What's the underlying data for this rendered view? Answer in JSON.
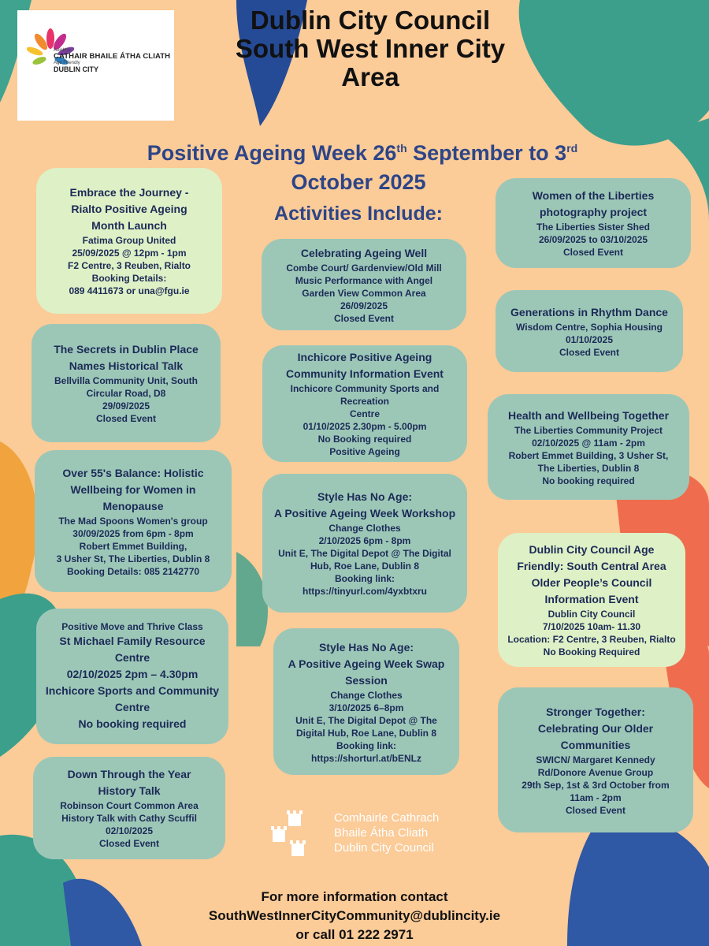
{
  "logo": {
    "small_top": "Aoisbhá",
    "line1": "CATHAIR BHAILE ÁTHA CLIATH",
    "small_mid": "Age Friendly",
    "line2": "DUBLIN CITY"
  },
  "header": {
    "title_line1": "Dublin City Council",
    "title_line2": "South West Inner City",
    "title_line3": "Area",
    "subtitle_a": "Positive Ageing Week 26",
    "subtitle_sup1": "th",
    "subtitle_b": " September to 3",
    "subtitle_sup2": "rd",
    "subtitle_line2": "October 2025",
    "subtitle_line3": "Activities Include:"
  },
  "events": {
    "embrace": {
      "title": [
        "Embrace the Journey -",
        "Rialto Positive Ageing",
        "Month Launch"
      ],
      "lines": [
        "Fatima Group United",
        "25/09/2025 @ 12pm - 1pm",
        "F2 Centre, 3 Reuben, Rialto",
        "Booking Details:",
        "089 4411673 or una@fgu.ie"
      ]
    },
    "secrets": {
      "title": [
        "The Secrets in Dublin Place",
        "Names Historical Talk"
      ],
      "lines": [
        "Bellvilla Community Unit, South",
        "Circular Road, D8",
        "29/09/2025",
        "Closed Event"
      ]
    },
    "over55": {
      "title": [
        "Over 55's Balance: Holistic",
        "Wellbeing for Women in",
        "Menopause"
      ],
      "lines": [
        "The Mad Spoons Women's group",
        "30/09/2025 from 6pm - 8pm",
        "Robert Emmet Building,",
        "3 Usher St, The Liberties, Dublin 8",
        "Booking Details: 085 2142770"
      ]
    },
    "move": {
      "lines": [
        "Positive Move and Thrive Class"
      ],
      "title": [
        "St Michael Family Resource",
        "Centre",
        "02/10/2025 2pm – 4.30pm",
        "Inchicore Sports and Community",
        "Centre",
        "No booking required"
      ]
    },
    "down": {
      "title": [
        "Down Through the Year",
        "History Talk"
      ],
      "lines": [
        "Robinson Court Common Area",
        "History Talk with Cathy Scuffil",
        "02/10/2025",
        "Closed Event"
      ]
    },
    "celebrating": {
      "title": [
        "Celebrating Ageing Well"
      ],
      "lines": [
        "Combe Court/ Gardenview/Old Mill",
        "Music Performance with Angel",
        "Garden View Common Area",
        "26/09/2025",
        "Closed Event"
      ]
    },
    "inchicore": {
      "title": [
        "Inchicore Positive Ageing",
        "Community Information Event"
      ],
      "lines": [
        "Inchicore Community Sports and Recreation",
        "Centre",
        "01/10/2025 2.30pm - 5.00pm",
        "No Booking required",
        "Positive Ageing"
      ]
    },
    "style1": {
      "title": [
        "Style Has No Age:",
        "A Positive Ageing Week Workshop"
      ],
      "lines": [
        "Change Clothes",
        "2/10/2025 6pm - 8pm",
        "Unit E, The Digital Depot @ The Digital",
        "Hub, Roe Lane, Dublin 8",
        "Booking link:",
        "https://tinyurl.com/4yxbtxru"
      ]
    },
    "style2": {
      "title": [
        "Style Has No Age:",
        "A Positive Ageing Week Swap",
        "Session"
      ],
      "lines": [
        "Change Clothes",
        "3/10/2025 6–8pm",
        "Unit E, The Digital Depot @ The",
        "Digital Hub, Roe Lane, Dublin 8",
        "Booking link:",
        "https://shorturl.at/bENLz"
      ]
    },
    "women": {
      "title": [
        "Women of the Liberties",
        "photography project"
      ],
      "lines": [
        "The Liberties Sister Shed",
        "26/09/2025 to 03/10/2025",
        "Closed Event"
      ]
    },
    "rhythm": {
      "title": [
        "Generations in Rhythm Dance"
      ],
      "lines": [
        "Wisdom Centre, Sophia Housing",
        "01/10/2025",
        "Closed Event"
      ]
    },
    "health": {
      "title": [
        "Health and Wellbeing Together"
      ],
      "lines": [
        "The Liberties Community Project",
        "02/10/2025 @ 11am - 2pm",
        "Robert Emmet Building, 3 Usher St,",
        "The Liberties, Dublin 8",
        "No booking required"
      ]
    },
    "dcc": {
      "title": [
        "Dublin City Council Age",
        "Friendly: South Central Area",
        "Older People’s Council",
        "Information Event"
      ],
      "lines": [
        "Dublin City Council",
        "7/10/2025 10am- 11.30",
        "Location: F2 Centre, 3 Reuben, Rialto",
        "No Booking Required"
      ]
    },
    "stronger": {
      "title": [
        "Stronger Together:",
        "Celebrating Our Older",
        "Communities"
      ],
      "lines": [
        "SWICN/ Margaret Kennedy",
        "Rd/Donore Avenue Group",
        "29th Sep, 1st & 3rd October from",
        "11am - 2pm",
        "Closed Event"
      ]
    }
  },
  "council_logo": {
    "line1": "Comhairle Cathrach",
    "line2": "Bhaile Átha Cliath",
    "line3": "Dublin City Council"
  },
  "footer": {
    "line1": "For more information contact",
    "line2": "SouthWestInnerCityCommunity@dublincity.ie",
    "line3": "or call 01 222 2971"
  },
  "colors": {
    "background": "#fbcb98",
    "card": "#9cc7b7",
    "card_light": "#def0c5",
    "heading_blue": "#2d4587",
    "text_navy": "#1c2a57"
  }
}
